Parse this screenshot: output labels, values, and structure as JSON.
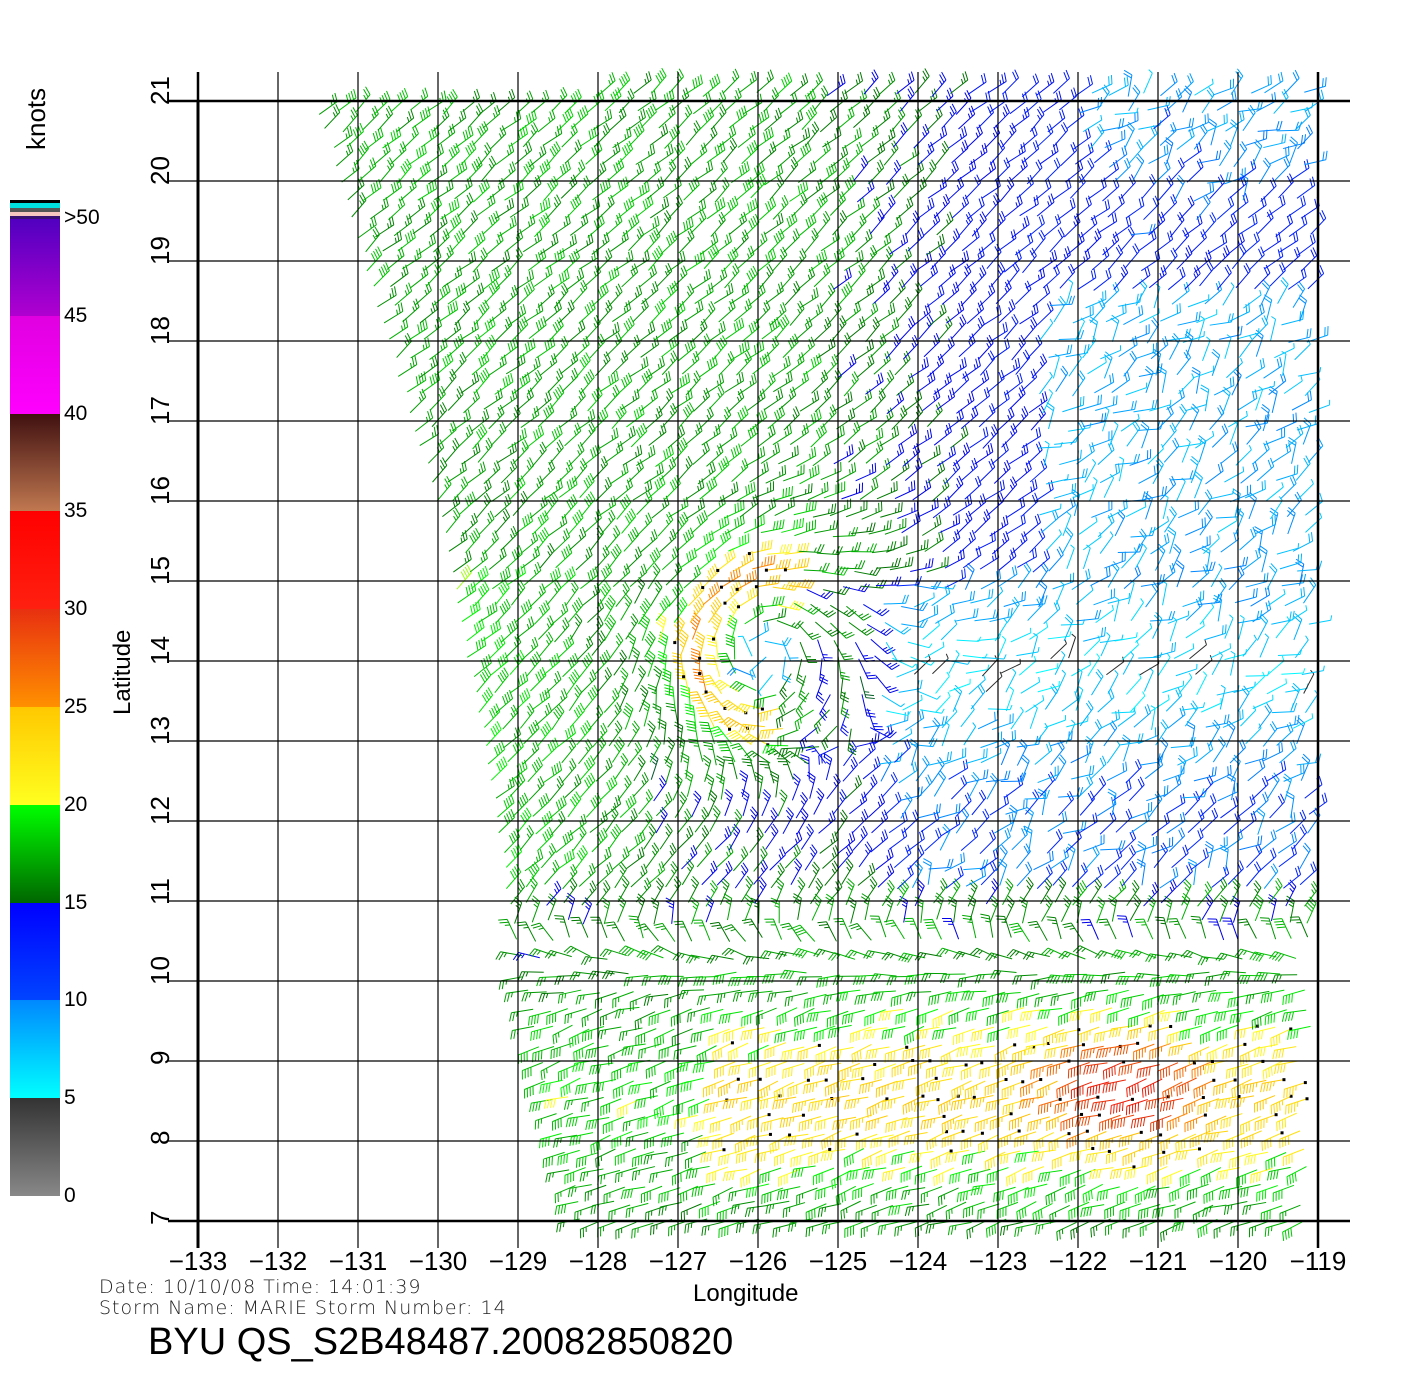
{
  "chart_data": {
    "type": "vector-field",
    "title": "BYU  QS_S2B48487.20082850820",
    "xlabel": "Longitude",
    "ylabel": "Latitude",
    "xlim": [
      -133,
      -119
    ],
    "ylim": [
      7,
      21
    ],
    "xticks": [
      "−133",
      "−132",
      "−131",
      "−130",
      "−129",
      "−128",
      "−127",
      "−126",
      "−125",
      "−124",
      "−123",
      "−122",
      "−121",
      "−120",
      "−119"
    ],
    "yticks": [
      "7",
      "8",
      "9",
      "10",
      "11",
      "12",
      "13",
      "14",
      "15",
      "16",
      "17",
      "18",
      "19",
      "20",
      "21"
    ],
    "grid": true,
    "colorbar": {
      "units": "knots",
      "tick_labels": [
        "0",
        "5",
        "10",
        "15",
        "20",
        "25",
        "30",
        "35",
        "40",
        "45",
        ">50"
      ],
      "levels": [
        0,
        5,
        10,
        15,
        20,
        25,
        30,
        35,
        40,
        45,
        50
      ]
    },
    "storm_center_approx": {
      "lon": -125.9,
      "lat": 14.1
    },
    "swath_west_edge": [
      [
        -131.5,
        21
      ],
      [
        -130,
        16
      ],
      [
        -129.4,
        13
      ],
      [
        -129.1,
        11
      ],
      [
        -128.7,
        9
      ],
      [
        -128.2,
        7
      ]
    ]
  },
  "info": {
    "date_line": "Date:  10/10/08    Time:  14:01:39",
    "storm_line": "Storm  Name:  MARIE    Storm  Number:  14"
  }
}
